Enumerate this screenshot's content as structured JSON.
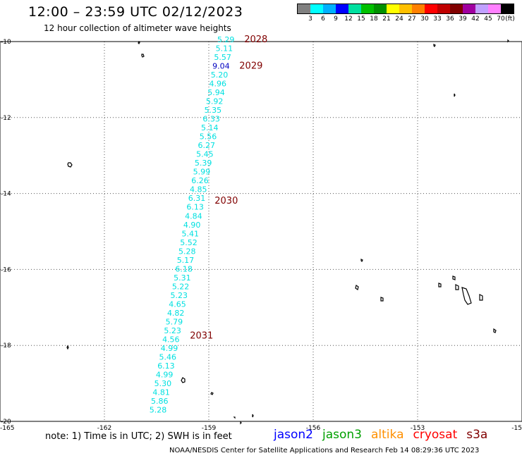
{
  "header": {
    "title": "12:00 – 23:59 UTC 02/12/2023",
    "subtitle": "12 hour collection of altimeter wave heights"
  },
  "legend": {
    "colors": [
      "#808080",
      "#00ffff",
      "#00b0ff",
      "#0000ff",
      "#00e0a0",
      "#00c000",
      "#009000",
      "#ffff00",
      "#ffc000",
      "#ff8000",
      "#ff0000",
      "#c00000",
      "#800000",
      "#a000a0",
      "#c0a0ff",
      "#ff80ff",
      "#000000"
    ],
    "ticks": [
      "3",
      "6",
      "9",
      "12",
      "15",
      "18",
      "21",
      "24",
      "27",
      "30",
      "33",
      "36",
      "39",
      "42",
      "45",
      "70"
    ],
    "unit": "(ft)"
  },
  "axes": {
    "lon_labels": [
      "-165",
      "-162",
      "-159",
      "-156",
      "-153",
      "-15"
    ],
    "lat_labels": [
      "-10",
      "-12",
      "-14",
      "-16",
      "-18",
      "-20"
    ]
  },
  "track_labels": [
    {
      "label": "2028",
      "lat": -10.0
    },
    {
      "label": "2029",
      "lat": -10.7
    },
    {
      "label": "2030",
      "lat": -14.25
    },
    {
      "label": "2031",
      "lat": -17.8
    }
  ],
  "chart_data": {
    "type": "scatter",
    "wave_heights_ft": [
      "5.29",
      "5.11",
      "5.57",
      "9.04",
      "5.20",
      "4.96",
      "5.94",
      "5.92",
      "5.35",
      "6.33",
      "5.14",
      "5.56",
      "6.27",
      "5.45",
      "5.39",
      "5.99",
      "6.26",
      "4.85",
      "6.31",
      "6.13",
      "4.84",
      "4.90",
      "5.41",
      "5.52",
      "5.28",
      "5.17",
      "6.18",
      "5.31",
      "5.22",
      "5.23",
      "4.65",
      "4.82",
      "5.79",
      "5.23",
      "4.56",
      "4.99",
      "5.46",
      "6.13",
      "4.99",
      "5.30",
      "4.81",
      "5.86",
      "5.28"
    ],
    "colors": [
      "#00e0e0",
      "#00e0e0",
      "#00e0e0",
      "#0000c0",
      "#00e0e0",
      "#00e0e0",
      "#00e0e0",
      "#00e0e0",
      "#00e0e0",
      "#00e0e0",
      "#00e0e0",
      "#00e0e0",
      "#00e0e0",
      "#00e0e0",
      "#00e0e0",
      "#00e0e0",
      "#00e0e0",
      "#00e0e0",
      "#00e0e0",
      "#00e0e0",
      "#00e0e0",
      "#00e0e0",
      "#00e0e0",
      "#00e0e0",
      "#00e0e0",
      "#00e0e0",
      "#00e0e0",
      "#00e0e0",
      "#00e0e0",
      "#00e0e0",
      "#00e0e0",
      "#00e0e0",
      "#00e0e0",
      "#00e0e0",
      "#00e0e0",
      "#00e0e0",
      "#00e0e0",
      "#00e0e0",
      "#00e0e0",
      "#00e0e0",
      "#00e0e0",
      "#00e0e0",
      "#00e0e0"
    ],
    "track_start": {
      "lon": -158.55,
      "lat": -10.0
    },
    "track_end": {
      "lon": -160.5,
      "lat": -19.75
    },
    "x_range": [
      -165,
      -150
    ],
    "y_range": [
      -20,
      -10
    ],
    "grid": true
  },
  "footer": {
    "note": "note:  1) Time is in UTC;  2) SWH is in feet",
    "credit": "NOAA/NESDIS Center for Satellite Applications and Research     Feb 14 08:29:36 UTC 2023",
    "satellites": [
      {
        "name": "jason2",
        "color": "#0000ff"
      },
      {
        "name": "jason3",
        "color": "#00a000"
      },
      {
        "name": "altika",
        "color": "#ff9000"
      },
      {
        "name": "cryosat",
        "color": "#ff0000"
      },
      {
        "name": "s3a",
        "color": "#800000"
      }
    ]
  }
}
